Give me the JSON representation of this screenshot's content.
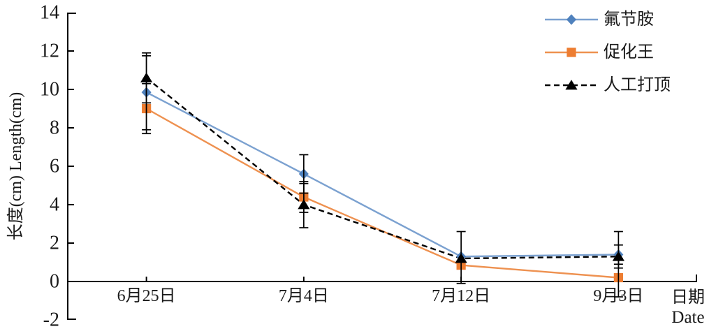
{
  "chart_data": {
    "type": "line",
    "title": "",
    "categories": [
      "6月25日",
      "7月4日",
      "7月12日",
      "9月3日"
    ],
    "series": [
      {
        "name": "氟节胺",
        "marker": "diamond",
        "marker_color": "#4f81bd",
        "line_color": "#7ba1d0",
        "dashed": false,
        "values": [
          9.85,
          5.6,
          1.3,
          1.4
        ],
        "error_bars": [
          [
            7.9,
            11.75
          ],
          [
            4.6,
            6.6
          ],
          null,
          [
            0.9,
            2.6
          ]
        ]
      },
      {
        "name": "促化王",
        "marker": "square",
        "marker_color": "#ed7d31",
        "line_color": "#ee9150",
        "dashed": false,
        "values": [
          9.0,
          4.4,
          0.85,
          0.2
        ],
        "error_bars": [
          [
            7.7,
            10.3
          ],
          [
            3.6,
            5.1
          ],
          null,
          [
            -0.8,
            1.2
          ]
        ]
      },
      {
        "name": "人工打顶",
        "marker": "triangle",
        "marker_color": "#000000",
        "line_color": "#000000",
        "dashed": true,
        "values": [
          10.6,
          4.0,
          1.2,
          1.3
        ],
        "error_bars": [
          [
            9.3,
            11.9
          ],
          [
            2.8,
            5.2
          ],
          [
            -0.1,
            2.6
          ],
          [
            0.7,
            1.9
          ]
        ]
      }
    ],
    "ylabel": "长度(cm) Length(cm)",
    "xlabel_line1": "日期",
    "xlabel_line2": "Date",
    "ylim": [
      -2,
      14
    ],
    "yticks": [
      14,
      12,
      10,
      8,
      6,
      4,
      2,
      0,
      -2
    ],
    "grid": false,
    "legend_position": "top-right",
    "axis_color": "#000000",
    "error_bar_color": "#000000"
  }
}
